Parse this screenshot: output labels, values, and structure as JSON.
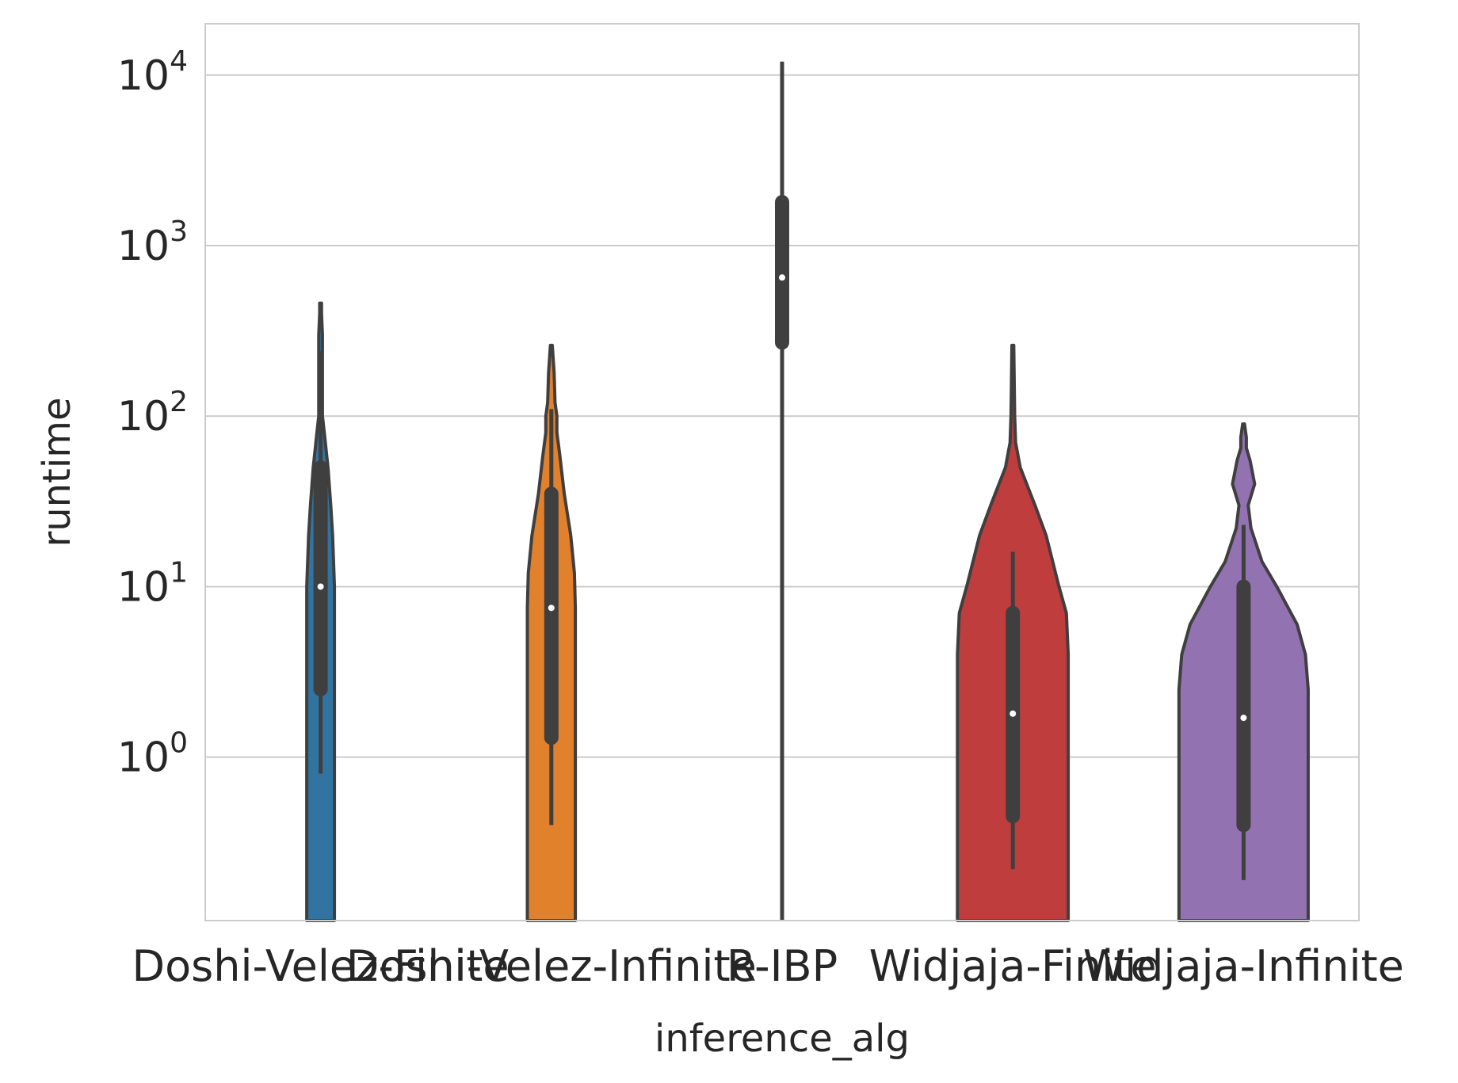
{
  "chart_data": {
    "type": "violin",
    "xlabel": "inference_alg",
    "ylabel": "runtime",
    "yscale": "log",
    "ylim": [
      0.11,
      20000
    ],
    "yticks": [
      {
        "value": 1,
        "base": "10",
        "exp": "0"
      },
      {
        "value": 10,
        "base": "10",
        "exp": "1"
      },
      {
        "value": 100,
        "base": "10",
        "exp": "2"
      },
      {
        "value": 1000,
        "base": "10",
        "exp": "3"
      },
      {
        "value": 10000,
        "base": "10",
        "exp": "4"
      }
    ],
    "grid": "horizontal",
    "categories": [
      "Doshi-Velez-Finite",
      "Doshi-Velez-Infinite",
      "R-IBP",
      "Widjaja-Finite",
      "Widjaja-Infinite"
    ],
    "series": [
      {
        "category": "Doshi-Velez-Finite",
        "color": "#3274a1",
        "median": 10,
        "q1": 2.5,
        "q3": 50,
        "whisker_low": 0.8,
        "whisker_high": 240,
        "violin_max": 460,
        "density": [
          [
            0.11,
            0.15
          ],
          [
            0.8,
            0.15
          ],
          [
            2,
            0.15
          ],
          [
            10,
            0.15
          ],
          [
            20,
            0.13
          ],
          [
            30,
            0.11
          ],
          [
            50,
            0.08
          ],
          [
            80,
            0.04
          ],
          [
            100,
            0.02
          ],
          [
            200,
            0.02
          ],
          [
            300,
            0.02
          ],
          [
            400,
            0.01
          ],
          [
            460,
            0.01
          ]
        ]
      },
      {
        "category": "Doshi-Velez-Infinite",
        "color": "#e1812c",
        "median": 7.5,
        "q1": 1.3,
        "q3": 35,
        "whisker_low": 0.4,
        "whisker_high": 110,
        "violin_max": 260,
        "density": [
          [
            0.11,
            0.26
          ],
          [
            0.4,
            0.26
          ],
          [
            2,
            0.26
          ],
          [
            7.5,
            0.26
          ],
          [
            12,
            0.25
          ],
          [
            20,
            0.21
          ],
          [
            35,
            0.14
          ],
          [
            60,
            0.09
          ],
          [
            80,
            0.06
          ],
          [
            100,
            0.06
          ],
          [
            120,
            0.04
          ],
          [
            180,
            0.03
          ],
          [
            260,
            0.01
          ]
        ]
      },
      {
        "category": "R-IBP",
        "color": "#3a923a",
        "median": 650,
        "q1": 270,
        "q3": 1800,
        "whisker_low": 0.11,
        "whisker_high": 12000,
        "violin_max": 12000,
        "density": []
      },
      {
        "category": "Widjaja-Finite",
        "color": "#c03d3e",
        "median": 1.8,
        "q1": 0.45,
        "q3": 7,
        "whisker_low": 0.22,
        "whisker_high": 16,
        "violin_max": 260,
        "density": [
          [
            0.11,
            0.6
          ],
          [
            1,
            0.6
          ],
          [
            4,
            0.6
          ],
          [
            7,
            0.58
          ],
          [
            10,
            0.5
          ],
          [
            20,
            0.36
          ],
          [
            30,
            0.24
          ],
          [
            50,
            0.08
          ],
          [
            70,
            0.03
          ],
          [
            100,
            0.02
          ],
          [
            260,
            0.01
          ]
        ]
      },
      {
        "category": "Widjaja-Infinite",
        "color": "#9372b2",
        "median": 1.7,
        "q1": 0.4,
        "q3": 10,
        "whisker_low": 0.19,
        "whisker_high": 23,
        "violin_max": 90,
        "density": [
          [
            0.11,
            0.7
          ],
          [
            0.4,
            0.7
          ],
          [
            2.5,
            0.7
          ],
          [
            4,
            0.67
          ],
          [
            6,
            0.58
          ],
          [
            10,
            0.36
          ],
          [
            14,
            0.2
          ],
          [
            22,
            0.08
          ],
          [
            30,
            0.05
          ],
          [
            40,
            0.12
          ],
          [
            55,
            0.07
          ],
          [
            65,
            0.03
          ],
          [
            75,
            0.03
          ],
          [
            90,
            0.01
          ]
        ]
      }
    ]
  }
}
